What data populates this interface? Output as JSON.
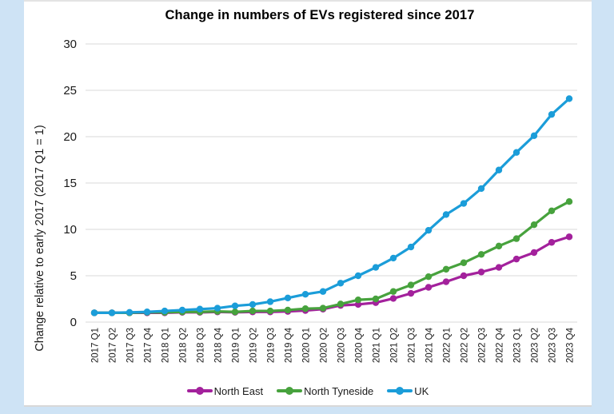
{
  "page": {
    "background_color": "#cee3f5",
    "panel_color": "#ffffff"
  },
  "chart_data": {
    "type": "line",
    "title": "Change in numbers of EVs registered since 2017",
    "xlabel": "",
    "ylabel": "Change relative to early 2017 (2017 Q1 = 1)",
    "ylim": [
      0,
      30
    ],
    "yticks": [
      0,
      5,
      10,
      15,
      20,
      25,
      30
    ],
    "grid": "horizontal",
    "gridline_color": "#d9d9d9",
    "legend_position": "bottom",
    "categories": [
      "2017 Q1",
      "2017 Q2",
      "2017 Q3",
      "2017 Q4",
      "2018 Q1",
      "2018 Q2",
      "2018 Q3",
      "2018 Q4",
      "2019 Q1",
      "2019 Q2",
      "2019 Q3",
      "2019 Q4",
      "2020 Q1",
      "2020 Q2",
      "2020 Q3",
      "2020 Q4",
      "2021 Q1",
      "2021 Q2",
      "2021 Q3",
      "2021 Q4",
      "2022 Q1",
      "2022 Q2",
      "2022 Q3",
      "2022 Q4",
      "2023 Q1",
      "2023 Q2",
      "2023 Q3",
      "2023 Q4"
    ],
    "series": [
      {
        "name": "North East",
        "color": "#a3219c",
        "values": [
          1.0,
          1.0,
          1.0,
          1.0,
          1.0,
          1.05,
          1.05,
          1.1,
          1.05,
          1.1,
          1.1,
          1.15,
          1.25,
          1.4,
          1.8,
          1.9,
          2.1,
          2.55,
          3.1,
          3.75,
          4.35,
          5.0,
          5.4,
          5.9,
          6.8,
          7.5,
          8.6,
          9.2
        ]
      },
      {
        "name": "North Tyneside",
        "color": "#47a23d",
        "values": [
          1.0,
          1.0,
          1.0,
          1.05,
          1.05,
          1.1,
          1.1,
          1.15,
          1.1,
          1.2,
          1.2,
          1.3,
          1.45,
          1.5,
          1.95,
          2.4,
          2.5,
          3.3,
          4.0,
          4.9,
          5.7,
          6.4,
          7.3,
          8.2,
          9.0,
          10.5,
          12.0,
          13.0
        ]
      },
      {
        "name": "UK",
        "color": "#1b9dd9",
        "values": [
          1.0,
          1.0,
          1.05,
          1.1,
          1.2,
          1.3,
          1.4,
          1.5,
          1.75,
          1.9,
          2.2,
          2.6,
          3.0,
          3.3,
          4.2,
          5.0,
          5.9,
          6.9,
          8.1,
          9.9,
          11.6,
          12.8,
          14.4,
          16.4,
          18.3,
          20.1,
          22.4,
          24.1
        ]
      }
    ]
  }
}
